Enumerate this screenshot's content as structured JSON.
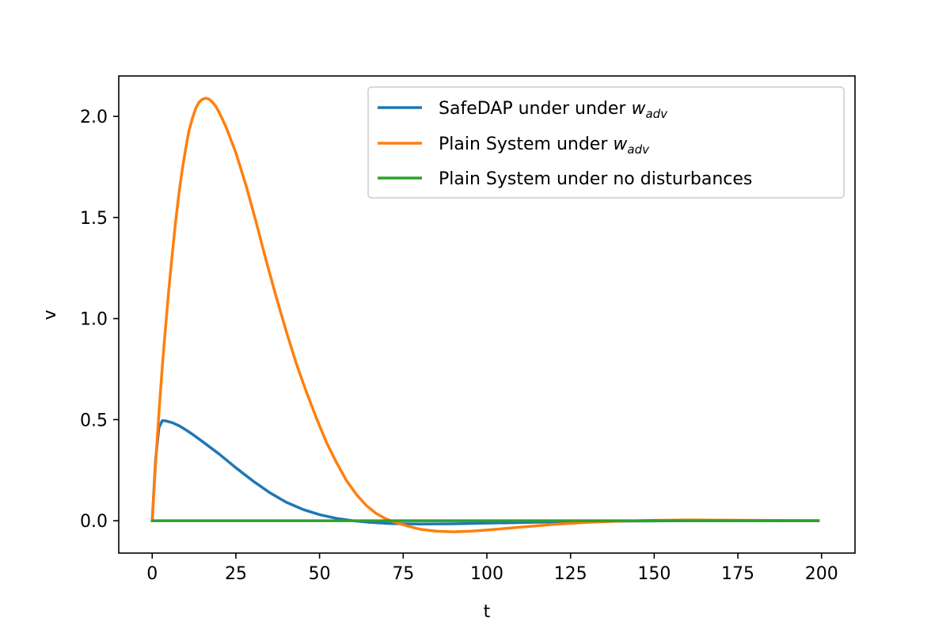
{
  "chart_data": {
    "type": "line",
    "title": "",
    "xlabel": "t",
    "ylabel": "v",
    "xlim": [
      -10,
      210
    ],
    "ylim": [
      -0.16,
      2.2
    ],
    "xticks": [
      0,
      25,
      50,
      75,
      100,
      125,
      150,
      175,
      200
    ],
    "yticks": [
      0.0,
      0.5,
      1.0,
      1.5,
      2.0
    ],
    "xtick_labels": [
      "0",
      "25",
      "50",
      "75",
      "100",
      "125",
      "150",
      "175",
      "200"
    ],
    "ytick_labels": [
      "0.0",
      "0.5",
      "1.0",
      "1.5",
      "2.0"
    ],
    "grid": false,
    "legend_position": "top-right",
    "series": [
      {
        "name": "SafeDAP under under w_adv",
        "legend_prefix": "SafeDAP under under ",
        "legend_math": "w",
        "legend_sub": "adv",
        "color": "#1f77b4",
        "x": [
          0,
          1,
          2,
          3,
          4,
          6,
          8,
          10,
          12,
          15,
          20,
          25,
          30,
          35,
          40,
          45,
          50,
          55,
          60,
          65,
          70,
          75,
          80,
          90,
          100,
          110,
          120,
          130,
          140,
          150,
          160,
          170,
          180,
          190,
          199
        ],
        "y": [
          0.0,
          0.3,
          0.46,
          0.495,
          0.494,
          0.485,
          0.47,
          0.45,
          0.428,
          0.392,
          0.33,
          0.262,
          0.198,
          0.14,
          0.092,
          0.056,
          0.03,
          0.012,
          0.0,
          -0.008,
          -0.013,
          -0.015,
          -0.016,
          -0.015,
          -0.012,
          -0.009,
          -0.006,
          -0.003,
          -0.002,
          -0.001,
          0.0,
          0.0,
          0.0,
          0.0,
          0.0
        ]
      },
      {
        "name": "Plain System under w_adv",
        "legend_prefix": "Plain System under ",
        "legend_math": "w",
        "legend_sub": "adv",
        "color": "#ff7f0e",
        "x": [
          0,
          1,
          2,
          3,
          4,
          5,
          6,
          7,
          8,
          9,
          10,
          11,
          12,
          13,
          14,
          15,
          16,
          17,
          18,
          19,
          20,
          22,
          25,
          28,
          31,
          34,
          37,
          40,
          43,
          46,
          49,
          52,
          55,
          58,
          61,
          64,
          67,
          70,
          73,
          76,
          80,
          85,
          90,
          95,
          100,
          110,
          120,
          130,
          140,
          150,
          160,
          170,
          180,
          190,
          199
        ],
        "y": [
          0.0,
          0.28,
          0.53,
          0.76,
          0.96,
          1.15,
          1.32,
          1.48,
          1.62,
          1.74,
          1.84,
          1.93,
          1.99,
          2.04,
          2.07,
          2.085,
          2.09,
          2.085,
          2.07,
          2.05,
          2.02,
          1.95,
          1.82,
          1.66,
          1.48,
          1.29,
          1.11,
          0.94,
          0.78,
          0.64,
          0.51,
          0.39,
          0.29,
          0.2,
          0.13,
          0.075,
          0.035,
          0.008,
          -0.01,
          -0.025,
          -0.042,
          -0.052,
          -0.055,
          -0.052,
          -0.046,
          -0.032,
          -0.018,
          -0.008,
          -0.002,
          0.002,
          0.004,
          0.003,
          0.002,
          0.001,
          0.0
        ]
      },
      {
        "name": "Plain System under no disturbances",
        "legend_prefix": "Plain System under no disturbances",
        "legend_math": "",
        "legend_sub": "",
        "color": "#2ca02c",
        "x": [
          0,
          50,
          100,
          150,
          199
        ],
        "y": [
          0.0,
          0.0,
          0.0,
          0.0,
          0.0
        ]
      }
    ]
  }
}
